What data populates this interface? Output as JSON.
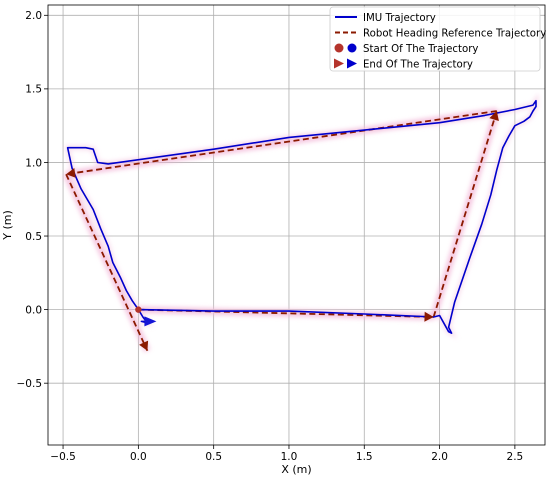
{
  "chart_data": {
    "type": "line",
    "title": "",
    "xlabel": "X (m)",
    "ylabel": "Y (m)",
    "xlim": [
      -0.6,
      2.7
    ],
    "ylim": [
      -0.92,
      2.07
    ],
    "grid": true,
    "legend_position": "top-right",
    "x_ticks": [
      -0.5,
      0.0,
      0.5,
      1.0,
      1.5,
      2.0,
      2.5
    ],
    "x_tick_labels": [
      "−0.5",
      "0.0",
      "0.5",
      "1.0",
      "1.5",
      "2.0",
      "2.5"
    ],
    "y_ticks": [
      -0.5,
      0.0,
      0.5,
      1.0,
      1.5,
      2.0
    ],
    "y_tick_labels": [
      "−0.5",
      "0.0",
      "0.5",
      "1.0",
      "1.5",
      "2.0"
    ],
    "series": [
      {
        "name": "IMU Trajectory",
        "style": "solid",
        "color": "#0000cc",
        "x": [
          0.0,
          0.5,
          1.0,
          1.5,
          1.96,
          2.0,
          2.06,
          2.08,
          2.06,
          2.1,
          2.2,
          2.28,
          2.34,
          2.38,
          2.42,
          2.46,
          2.5,
          2.56,
          2.6,
          2.62,
          2.64,
          2.64,
          2.62,
          2.5,
          2.3,
          2.0,
          1.5,
          1.0,
          0.5,
          -0.2,
          -0.27,
          -0.29,
          -0.3,
          -0.35,
          -0.4,
          -0.47,
          -0.44,
          -0.38,
          -0.3,
          -0.25,
          -0.2,
          -0.17,
          -0.12,
          -0.08,
          -0.04,
          0.0,
          0.03,
          0.06,
          0.02,
          0.08
        ],
        "y": [
          0.0,
          -0.01,
          -0.01,
          -0.03,
          -0.05,
          -0.04,
          -0.15,
          -0.16,
          -0.12,
          0.05,
          0.35,
          0.58,
          0.78,
          0.95,
          1.1,
          1.18,
          1.25,
          1.28,
          1.31,
          1.35,
          1.38,
          1.42,
          1.39,
          1.36,
          1.32,
          1.27,
          1.22,
          1.17,
          1.09,
          0.99,
          1.0,
          1.06,
          1.09,
          1.1,
          1.1,
          1.1,
          0.96,
          0.82,
          0.68,
          0.55,
          0.43,
          0.32,
          0.22,
          0.13,
          0.06,
          0.0,
          -0.05,
          -0.09,
          -0.08,
          -0.08
        ]
      },
      {
        "name": "Robot Heading Reference Trajectory",
        "style": "dashed",
        "color": "#8b1a00",
        "segments": [
          {
            "x": [
              0.0,
              1.96
            ],
            "y": [
              0.0,
              -0.05
            ]
          },
          {
            "x": [
              1.96,
              2.38
            ],
            "y": [
              -0.05,
              1.35
            ]
          },
          {
            "x": [
              2.38,
              -0.48
            ],
            "y": [
              1.35,
              0.92
            ]
          },
          {
            "x": [
              -0.48,
              0.06
            ],
            "y": [
              0.92,
              -0.28
            ]
          }
        ]
      }
    ],
    "legend_entries": [
      {
        "label": "IMU Trajectory",
        "marker": "line",
        "color": "#0000cc"
      },
      {
        "label": "Robot Heading Reference Trajectory",
        "marker": "dashed",
        "color": "#8b1a00"
      },
      {
        "label": "Start Of The Trajectory",
        "marker": "circle",
        "colors": [
          "#b5342c",
          "#0000cc"
        ]
      },
      {
        "label": "End Of The Trajectory",
        "marker": "triangle",
        "colors": [
          "#b5342c",
          "#0000cc"
        ]
      }
    ],
    "start_point": {
      "x": 0.0,
      "y": 0.0
    },
    "end_point_imu": {
      "x": 0.08,
      "y": -0.08
    },
    "end_point_reference": {
      "x": 0.06,
      "y": -0.28
    }
  }
}
